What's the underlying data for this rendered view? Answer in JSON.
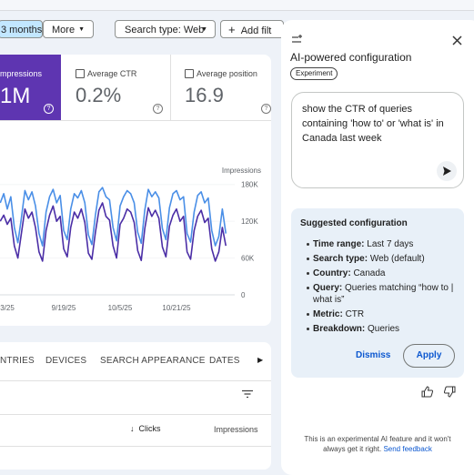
{
  "filters": {
    "date_chip": "3 months",
    "more": "More",
    "search_type": "Search type: Web",
    "add_filter": "Add filt"
  },
  "metrics": [
    {
      "label": "mpressions",
      "value": "1M"
    },
    {
      "label": "Average CTR",
      "value": "0.2%"
    },
    {
      "label": "Average position",
      "value": "16.9"
    }
  ],
  "chart_data": {
    "type": "line",
    "axis_label": "Impressions",
    "categories": [
      null,
      null,
      "3/25",
      null,
      null,
      null,
      null,
      null,
      null,
      null,
      null,
      null,
      null,
      null,
      null,
      null,
      null,
      null,
      "9/19/25",
      null,
      null,
      null,
      null,
      null,
      null,
      null,
      null,
      null,
      null,
      null,
      null,
      null,
      null,
      null,
      "10/5/25",
      null,
      null,
      null,
      null,
      null,
      null,
      null,
      null,
      null,
      null,
      null,
      null,
      null,
      null,
      null,
      "10/21/25",
      null,
      null,
      null,
      null,
      null,
      null,
      null,
      null,
      null,
      null,
      null,
      null,
      null,
      null
    ],
    "ylim": [
      0,
      190000
    ],
    "yticks": [
      0,
      {
        "value": 60000,
        "label": "60K"
      },
      {
        "value": 120000,
        "label": "120K"
      },
      {
        "value": 180000,
        "label": "180K"
      }
    ],
    "series": [
      {
        "color": "#4a8fe7",
        "values": [
          150000,
          165000,
          140000,
          160000,
          110000,
          85000,
          125000,
          170000,
          155000,
          168000,
          145000,
          100000,
          80000,
          135000,
          160000,
          172000,
          150000,
          162000,
          105000,
          90000,
          140000,
          165000,
          158000,
          170000,
          150000,
          98000,
          82000,
          130000,
          168000,
          175000,
          160000,
          155000,
          110000,
          88000,
          145000,
          160000,
          170000,
          165000,
          150000,
          102000,
          84000,
          138000,
          172000,
          160000,
          168000,
          158000,
          108000,
          90000,
          142000,
          165000,
          170000,
          155000,
          160000,
          100000,
          86000,
          135000,
          162000,
          168000,
          150000,
          158000,
          105000,
          80000,
          95000,
          140000,
          100000
        ]
      },
      {
        "color": "#4b2ea6",
        "values": [
          120000,
          130000,
          115000,
          125000,
          80000,
          60000,
          100000,
          140000,
          125000,
          135000,
          110000,
          70000,
          55000,
          105000,
          130000,
          145000,
          120000,
          128000,
          75000,
          62000,
          110000,
          135000,
          125000,
          140000,
          118000,
          68000,
          58000,
          102000,
          138000,
          150000,
          128000,
          122000,
          80000,
          60000,
          115000,
          125000,
          140000,
          135000,
          118000,
          72000,
          56000,
          108000,
          142000,
          128000,
          138000,
          125000,
          78000,
          62000,
          112000,
          130000,
          140000,
          120000,
          128000,
          70000,
          58000,
          105000,
          128000,
          138000,
          118000,
          125000,
          75000,
          55000,
          70000,
          110000,
          80000
        ]
      }
    ]
  },
  "tabs": [
    "NTRIES",
    "DEVICES",
    "SEARCH APPEARANCE",
    "DATES"
  ],
  "table": {
    "columns": [
      "Clicks",
      "Impressions"
    ]
  },
  "panel": {
    "title": "AI-powered configuration",
    "badge": "Experiment",
    "prompt": "show the CTR of queries containing 'how to' or 'what is' in Canada  last week",
    "suggested_title": "Suggested configuration",
    "items": [
      {
        "label": "Time range:",
        "value": "Last 7 days"
      },
      {
        "label": "Search type:",
        "value": "Web (default)"
      },
      {
        "label": "Country:",
        "value": "Canada"
      },
      {
        "label": "Query:",
        "value": "Queries matching “how to | what is”"
      },
      {
        "label": "Metric:",
        "value": "CTR"
      },
      {
        "label": "Breakdown:",
        "value": "Queries"
      }
    ],
    "dismiss": "Dismiss",
    "apply": "Apply",
    "footer": "This is an experimental AI feature and it won't always get it right.",
    "feedback": "Send feedback"
  }
}
